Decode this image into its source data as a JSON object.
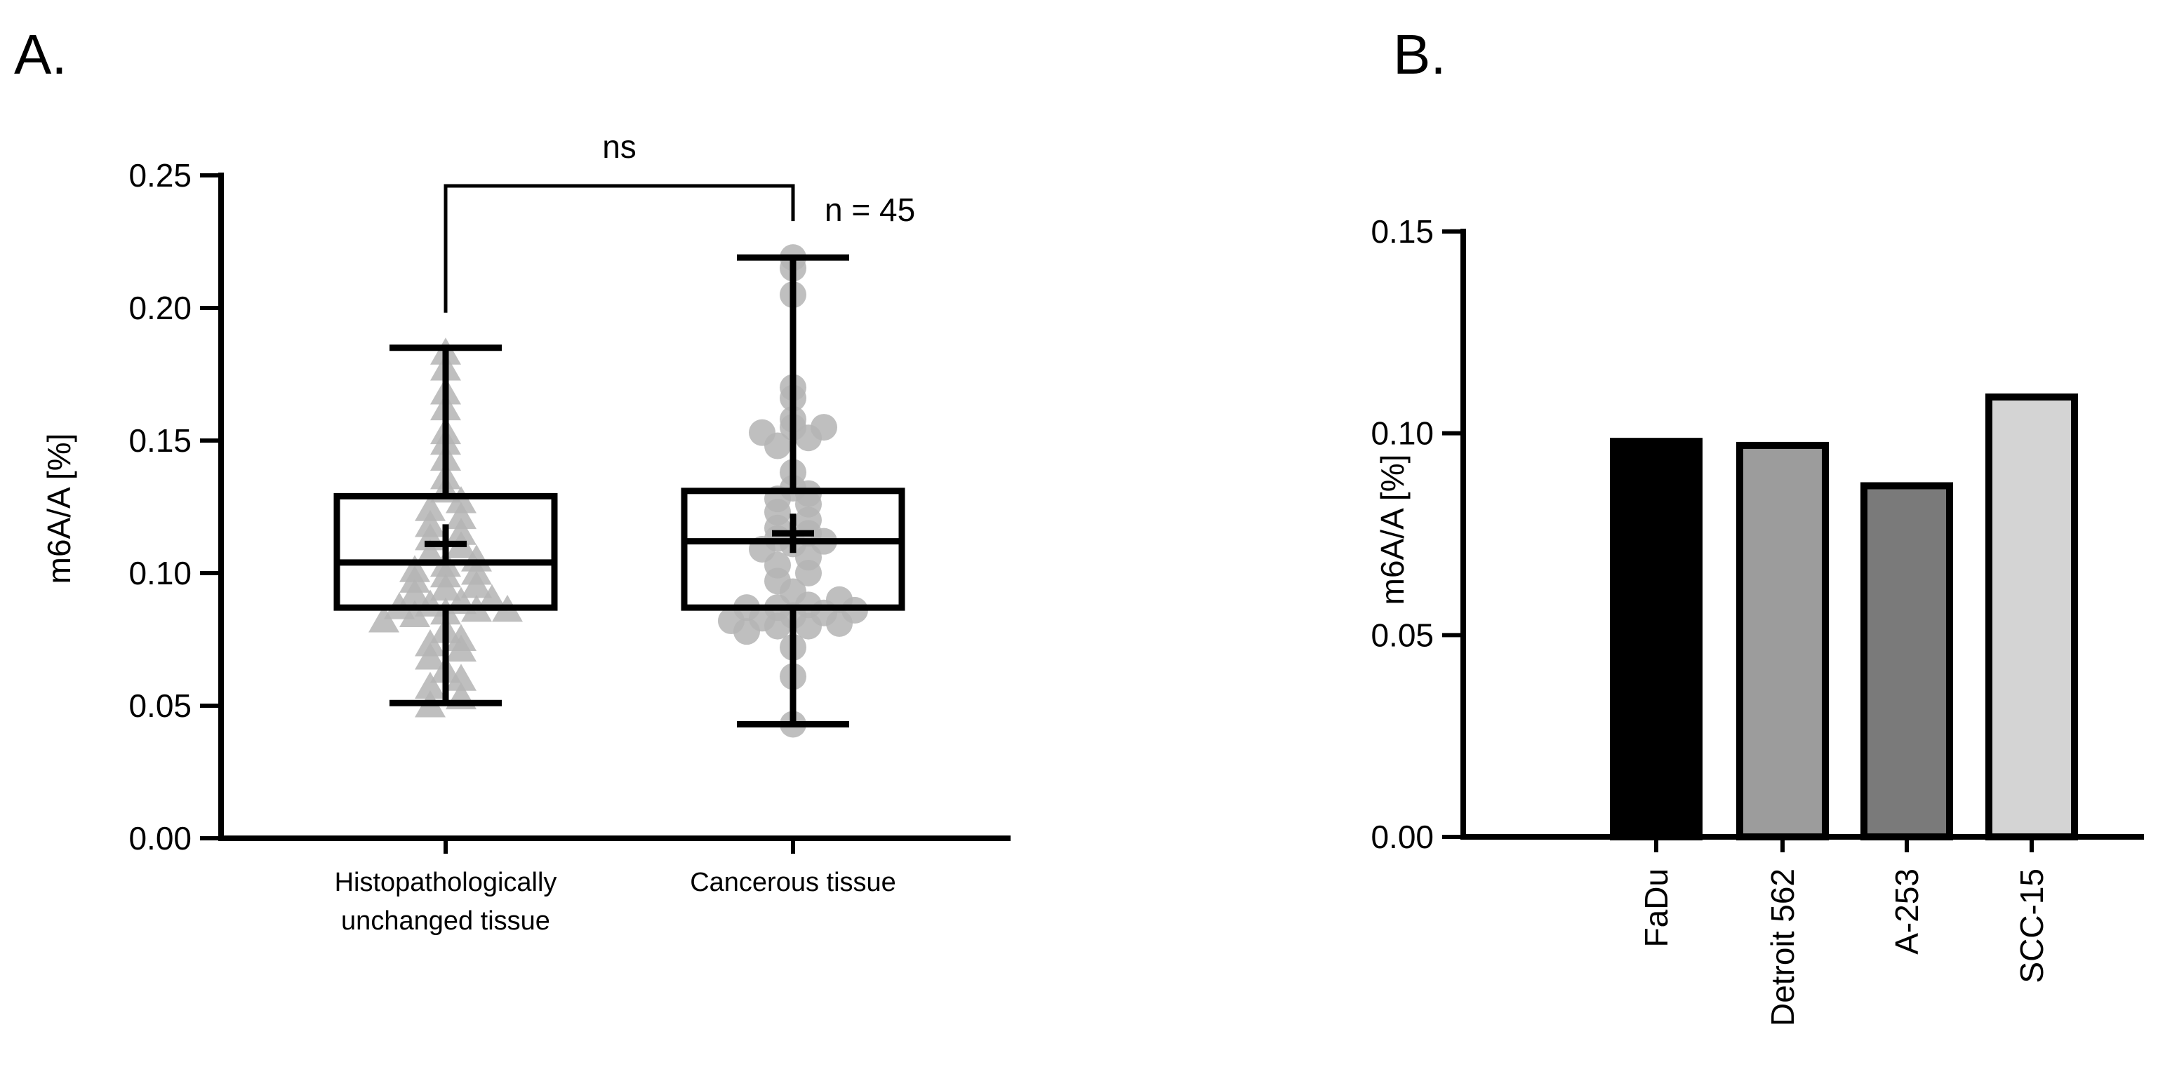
{
  "chart_data": [
    {
      "panel_label": "A.",
      "type": "box",
      "ylabel": "m6A/A [%]",
      "ylim": [
        0,
        0.25
      ],
      "yticks": [
        "0.00",
        "0.05",
        "0.10",
        "0.15",
        "0.20",
        "0.25"
      ],
      "groups": [
        {
          "label_lines": [
            "Histopathologically",
            "unchanged tissue"
          ],
          "marker": "triangle",
          "color": "#b4b4b4",
          "min": 0.051,
          "q1": 0.087,
          "median": 0.104,
          "q3": 0.129,
          "max": 0.185,
          "mean": 0.111,
          "points": [
            0.05,
            0.053,
            0.057,
            0.06,
            0.063,
            0.068,
            0.071,
            0.073,
            0.075,
            0.078,
            0.082,
            0.084,
            0.085,
            0.086,
            0.086,
            0.087,
            0.088,
            0.089,
            0.09,
            0.092,
            0.094,
            0.095,
            0.097,
            0.099,
            0.1,
            0.101,
            0.103,
            0.105,
            0.107,
            0.11,
            0.113,
            0.115,
            0.118,
            0.121,
            0.124,
            0.127,
            0.131,
            0.136,
            0.143,
            0.149,
            0.153,
            0.162,
            0.168,
            0.177,
            0.183
          ]
        },
        {
          "label_lines": [
            "Cancerous tissue"
          ],
          "marker": "circle",
          "color": "#b4b4b4",
          "min": 0.043,
          "q1": 0.087,
          "median": 0.112,
          "q3": 0.131,
          "max": 0.219,
          "mean": 0.115,
          "points": [
            0.043,
            0.061,
            0.072,
            0.078,
            0.08,
            0.08,
            0.081,
            0.082,
            0.083,
            0.084,
            0.085,
            0.086,
            0.087,
            0.087,
            0.088,
            0.09,
            0.093,
            0.097,
            0.1,
            0.103,
            0.106,
            0.109,
            0.111,
            0.112,
            0.113,
            0.115,
            0.117,
            0.12,
            0.123,
            0.126,
            0.128,
            0.13,
            0.132,
            0.138,
            0.148,
            0.151,
            0.153,
            0.155,
            0.155,
            0.158,
            0.166,
            0.17,
            0.205,
            0.215,
            0.219
          ]
        }
      ],
      "comparison": {
        "label": "ns",
        "groups": [
          0,
          1
        ]
      },
      "annotation": "n = 45"
    },
    {
      "panel_label": "B.",
      "type": "bar",
      "ylabel": "m6A/A [%]",
      "ylim": [
        0,
        0.15
      ],
      "yticks": [
        "0.00",
        "0.05",
        "0.10",
        "0.15"
      ],
      "categories": [
        "FaDu",
        "Detroit 562",
        "A-253",
        "SCC-15"
      ],
      "values": [
        0.098,
        0.097,
        0.087,
        0.109
      ],
      "colors": [
        "#000000",
        "#9c9c9c",
        "#7a7a7a",
        "#d4d4d4"
      ]
    }
  ]
}
